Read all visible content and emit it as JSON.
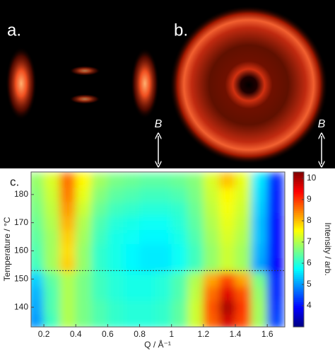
{
  "images": {
    "a_label": "a.",
    "b_label": "b.",
    "field_label": "B"
  },
  "chart_data": {
    "type": "heatmap",
    "label": "c.",
    "x_label": "Q / Å⁻¹",
    "y_label": "Temperature / °C",
    "colorbar_label": "Intensity / arb.",
    "colormap": "jet",
    "xlim": [
      0.12,
      1.71
    ],
    "ylim": [
      133,
      188
    ],
    "clim": [
      3.0,
      10.3
    ],
    "xticks": [
      0.2,
      0.4,
      0.6,
      0.8,
      1,
      1.2,
      1.4,
      1.6
    ],
    "yticks": [
      140,
      150,
      160,
      170,
      180
    ],
    "cticks": [
      4,
      5,
      6,
      7,
      8,
      9,
      10
    ],
    "x": [
      0.15,
      0.25,
      0.35,
      0.45,
      0.55,
      0.65,
      0.75,
      0.85,
      0.95,
      1.05,
      1.15,
      1.25,
      1.35,
      1.45,
      1.55,
      1.65
    ],
    "y": [
      135,
      140,
      145,
      150,
      155,
      160,
      165,
      170,
      175,
      180,
      185
    ],
    "z": [
      [
        5.0,
        6.2,
        7.0,
        6.6,
        6.3,
        6.1,
        6.0,
        6.0,
        6.1,
        6.4,
        7.2,
        8.7,
        9.7,
        8.9,
        6.9,
        4.4
      ],
      [
        5.1,
        6.3,
        7.0,
        6.6,
        6.3,
        6.1,
        6.0,
        6.0,
        6.1,
        6.4,
        7.2,
        8.8,
        10.0,
        9.0,
        6.9,
        4.3
      ],
      [
        5.2,
        6.3,
        7.0,
        6.6,
        6.2,
        6.0,
        5.9,
        5.9,
        6.0,
        6.3,
        7.1,
        8.6,
        9.6,
        8.8,
        6.8,
        4.2
      ],
      [
        5.4,
        6.4,
        7.0,
        6.6,
        6.2,
        6.0,
        5.9,
        5.9,
        6.0,
        6.3,
        7.0,
        8.2,
        8.9,
        8.2,
        6.6,
        4.2
      ],
      [
        6.2,
        6.9,
        7.9,
        6.8,
        6.1,
        5.9,
        5.7,
        5.6,
        5.6,
        5.8,
        6.2,
        6.8,
        7.2,
        6.9,
        5.1,
        3.9
      ],
      [
        6.3,
        6.9,
        7.8,
        6.8,
        6.1,
        5.9,
        5.7,
        5.6,
        5.6,
        5.8,
        6.2,
        6.8,
        7.2,
        6.9,
        5.2,
        4.0
      ],
      [
        6.4,
        6.9,
        7.9,
        6.9,
        6.2,
        5.9,
        5.8,
        5.7,
        5.7,
        5.9,
        6.3,
        6.9,
        7.3,
        7.0,
        5.3,
        4.0
      ],
      [
        6.5,
        7.0,
        8.1,
        7.0,
        6.3,
        6.0,
        5.9,
        5.8,
        5.8,
        6.0,
        6.4,
        7.0,
        7.4,
        7.1,
        5.3,
        4.0
      ],
      [
        6.6,
        7.1,
        8.3,
        7.2,
        6.5,
        6.2,
        6.1,
        6.0,
        6.0,
        6.1,
        6.5,
        7.1,
        7.5,
        7.2,
        5.4,
        4.1
      ],
      [
        6.7,
        7.2,
        8.5,
        7.4,
        6.7,
        6.4,
        6.3,
        6.2,
        6.2,
        6.3,
        6.6,
        7.2,
        7.6,
        7.3,
        5.5,
        4.1
      ],
      [
        6.8,
        7.3,
        8.6,
        7.6,
        6.9,
        6.6,
        6.5,
        6.4,
        6.4,
        6.5,
        6.7,
        7.3,
        8.0,
        7.4,
        5.6,
        4.2
      ]
    ],
    "hline": 153
  }
}
